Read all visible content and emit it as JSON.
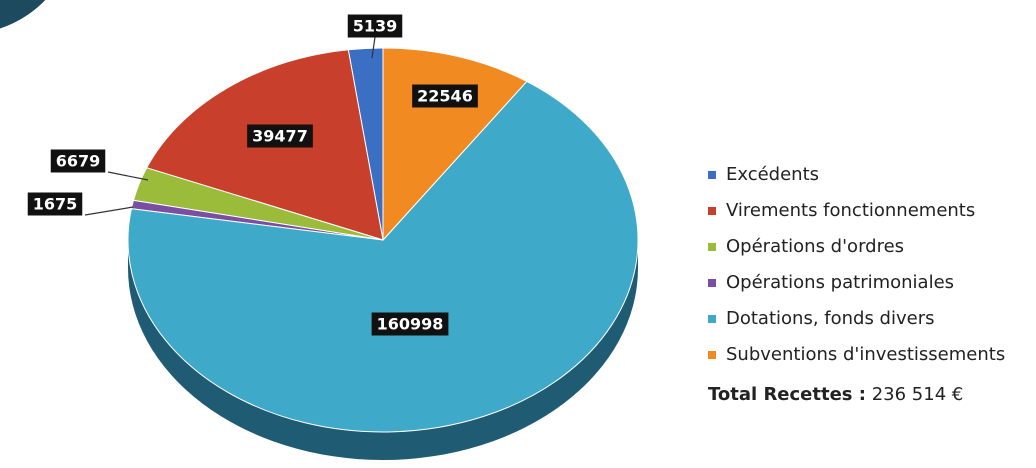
{
  "chart_data": {
    "type": "pie",
    "categories": [
      "Excédents",
      "Virements fonctionnements",
      "Opérations d'ordres",
      "Opérations patrimoniales",
      "Dotations, fonds divers",
      "Subventions d'investissements"
    ],
    "values": [
      5139,
      39477,
      6679,
      1675,
      160998,
      22546
    ],
    "colors": [
      "#3a6fc4",
      "#c8402b",
      "#9bbb3b",
      "#7a4ea3",
      "#3ea9c8",
      "#f28a22"
    ],
    "total_label": "Total Recettes :",
    "total_value": "236 514 €"
  }
}
